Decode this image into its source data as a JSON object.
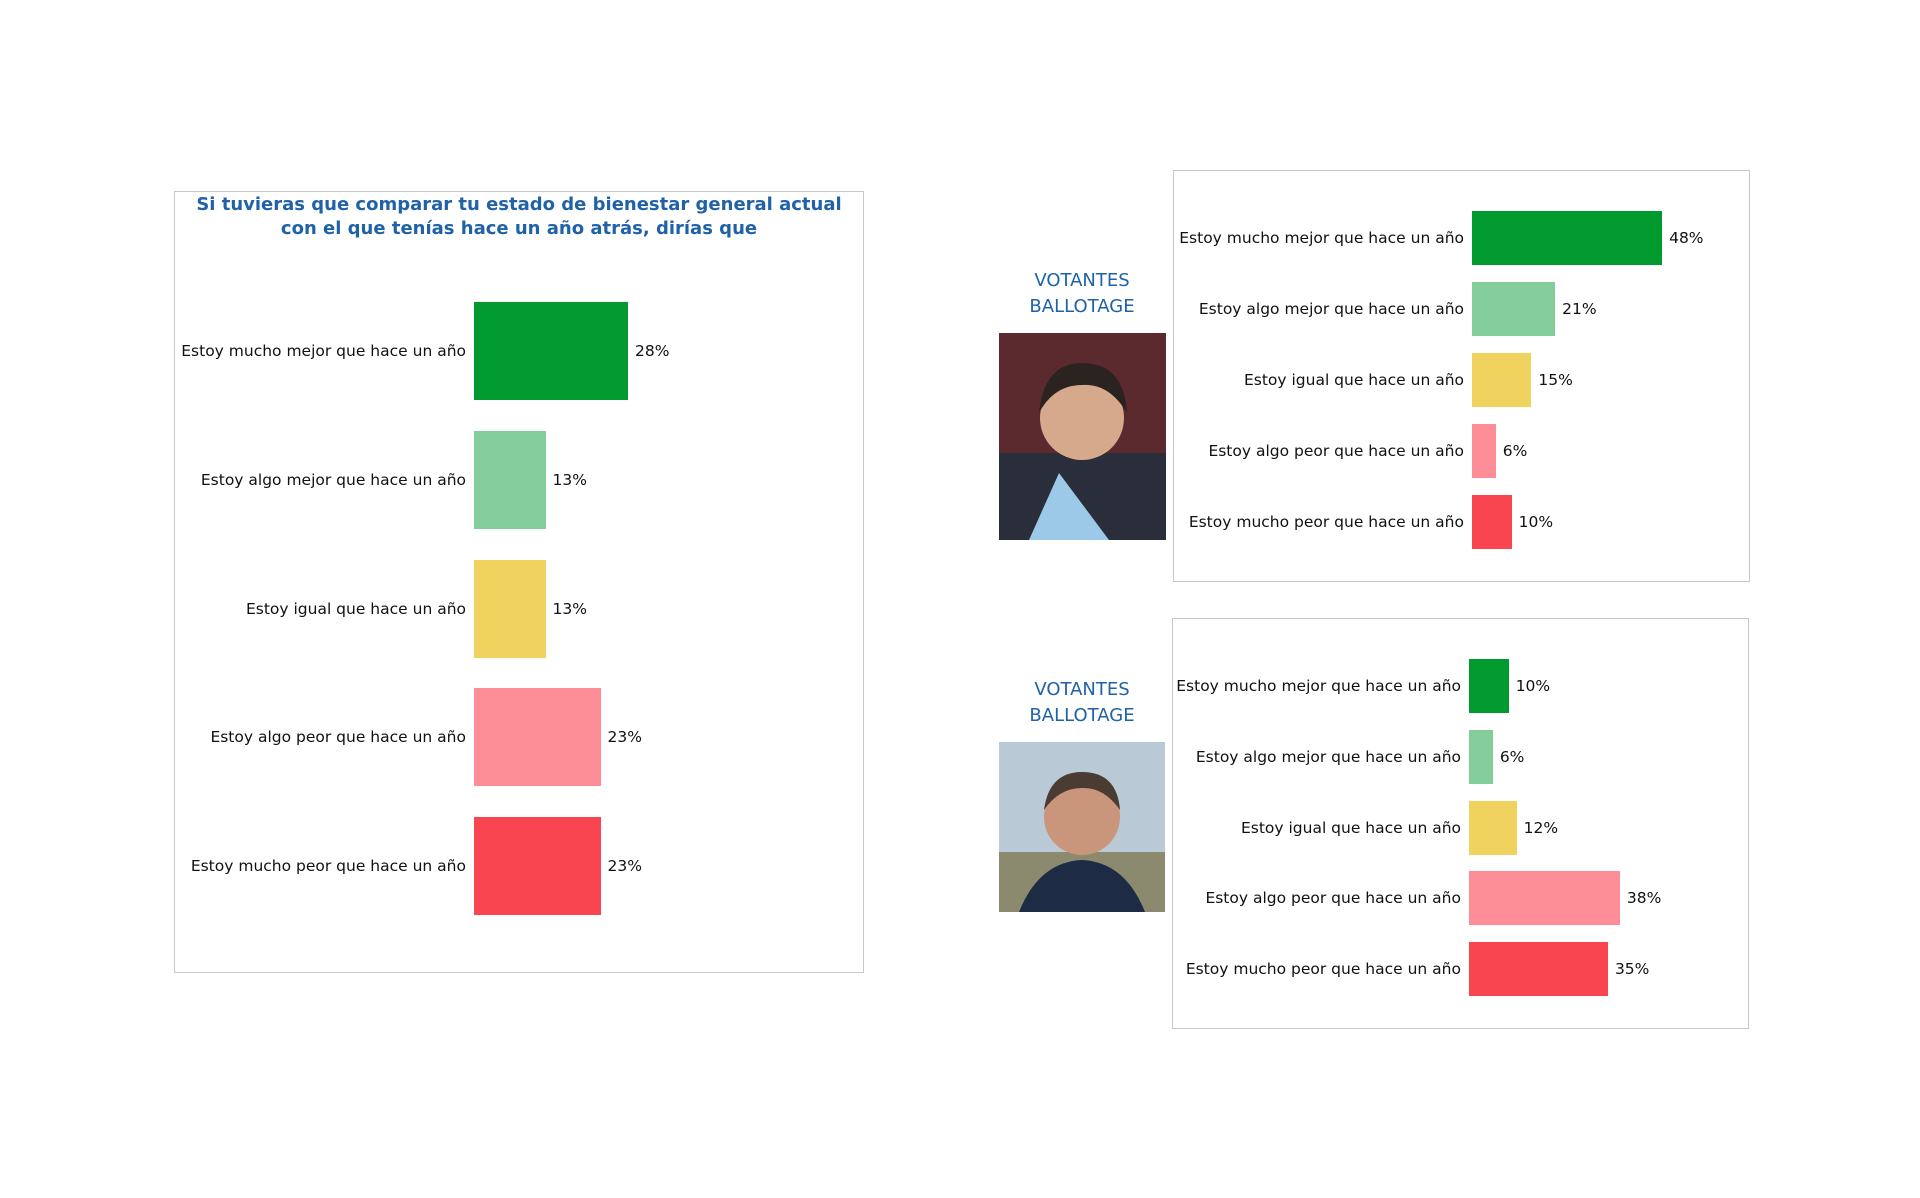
{
  "chart_data": [
    {
      "type": "hbar",
      "title": "Si tuvieras que comparar tu estado de bienestar general actual con el que tenías hace un año atrás, dirías que",
      "categories": [
        "Estoy mucho mejor que hace un año",
        "Estoy algo mejor que hace un año",
        "Estoy igual que hace un año",
        "Estoy algo peor que hace un año",
        "Estoy mucho peor que hace un año"
      ],
      "values": [
        28,
        13,
        13,
        23,
        23
      ],
      "value_labels": [
        "28%",
        "13%",
        "13%",
        "23%",
        "23%"
      ],
      "colors": [
        "#009a2e",
        "#82cd9a",
        "#efd35e",
        "#fd8e97",
        "#f94550"
      ]
    },
    {
      "type": "hbar",
      "group_label": "VOTANTES BALLOTAGE",
      "categories": [
        "Estoy mucho mejor que hace un año",
        "Estoy algo mejor que hace un año",
        "Estoy igual que hace un año",
        "Estoy algo peor que hace un año",
        "Estoy mucho peor que hace un año"
      ],
      "values": [
        48,
        21,
        15,
        6,
        10
      ],
      "value_labels": [
        "48%",
        "21%",
        "15%",
        "6%",
        "10%"
      ],
      "colors": [
        "#009a2e",
        "#82cd9a",
        "#efd35e",
        "#fd8e97",
        "#f94550"
      ]
    },
    {
      "type": "hbar",
      "group_label": "VOTANTES BALLOTAGE",
      "categories": [
        "Estoy mucho mejor que hace un año",
        "Estoy algo mejor que hace un año",
        "Estoy igual que hace un año",
        "Estoy algo peor que hace un año",
        "Estoy mucho peor que hace un año"
      ],
      "values": [
        10,
        6,
        12,
        38,
        35
      ],
      "value_labels": [
        "10%",
        "6%",
        "12%",
        "38%",
        "35%"
      ],
      "colors": [
        "#009a2e",
        "#82cd9a",
        "#efd35e",
        "#fd8e97",
        "#f94550"
      ]
    }
  ]
}
